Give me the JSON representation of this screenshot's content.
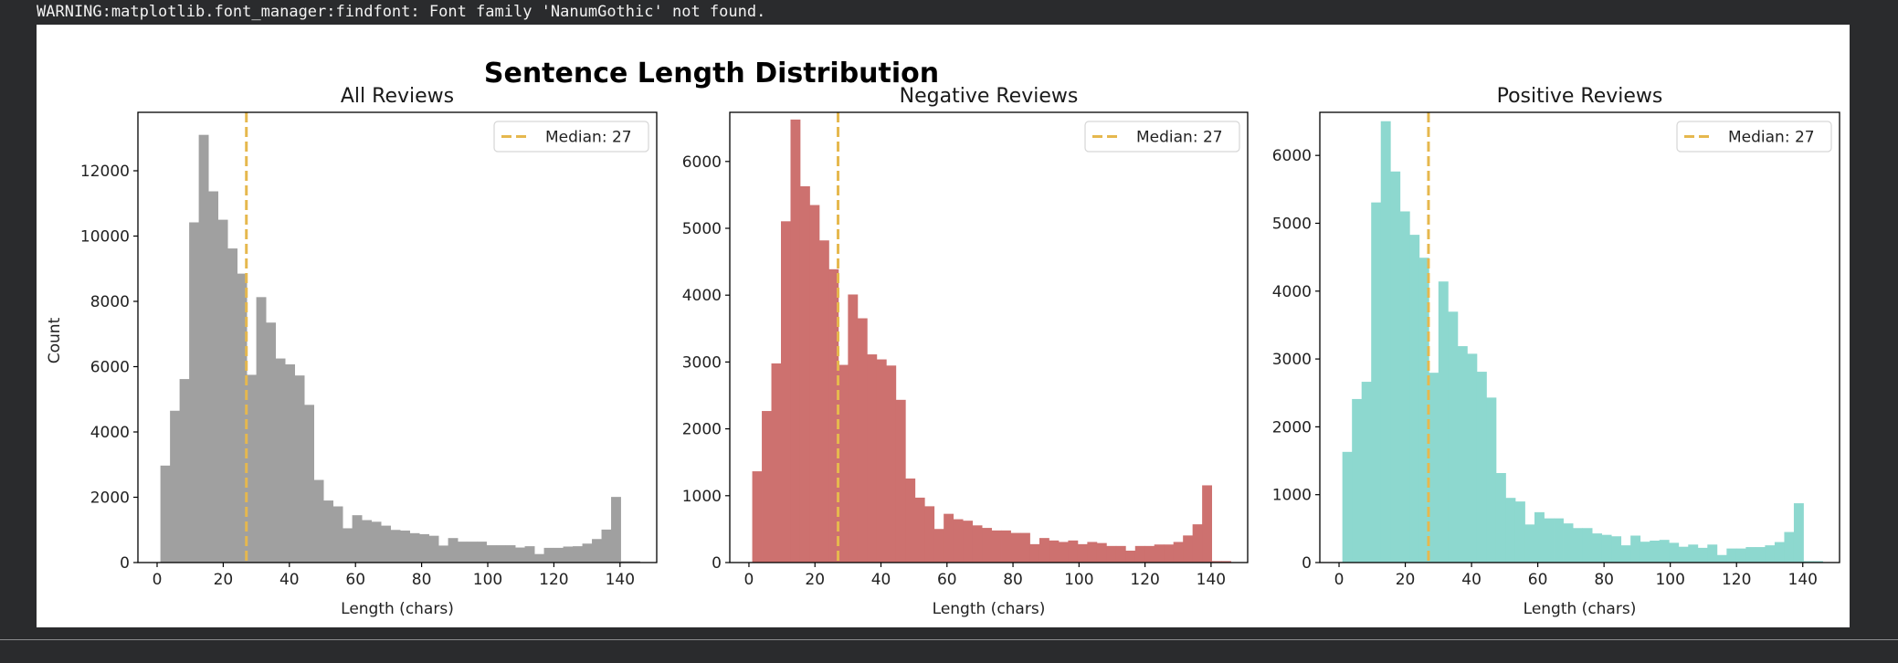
{
  "console": {
    "warning_text": "WARNING:matplotlib.font_manager:findfont: Font family 'NanumGothic' not found."
  },
  "figure": {
    "suptitle": "Sentence Length Distribution",
    "ylabel": "Count",
    "xlabel": "Length (chars)",
    "median_color": "#e6b84e",
    "legend_label": "Median: 27"
  },
  "chart_data": [
    {
      "type": "bar",
      "subtype": "histogram",
      "title": "All Reviews",
      "xlabel": "Length (chars)",
      "ylabel": "Count",
      "color": "#a0a0a0",
      "bin_start": 1,
      "bin_width": 2.9,
      "xlim": [
        -5.8,
        151.1
      ],
      "ylim": [
        0,
        13790
      ],
      "xticks": [
        0,
        20,
        40,
        60,
        80,
        100,
        120,
        140
      ],
      "yticks": [
        0,
        2000,
        4000,
        6000,
        8000,
        10000,
        12000
      ],
      "median": 27,
      "legend": [
        "Median: 27"
      ],
      "legend_position": "upper right",
      "grid": false,
      "values": [
        2970,
        4650,
        5620,
        10420,
        13100,
        11370,
        10500,
        9620,
        8850,
        5750,
        8130,
        7350,
        6250,
        6070,
        5730,
        4830,
        2530,
        1900,
        1720,
        1050,
        1450,
        1300,
        1250,
        1130,
        1000,
        980,
        900,
        870,
        820,
        520,
        750,
        640,
        640,
        640,
        530,
        530,
        530,
        460,
        500,
        260,
        450,
        450,
        490,
        500,
        580,
        720,
        1010,
        2010,
        40,
        40
      ]
    },
    {
      "type": "bar",
      "subtype": "histogram",
      "title": "Negative Reviews",
      "xlabel": "Length (chars)",
      "ylabel": "",
      "color": "#cd716f",
      "bin_start": 1,
      "bin_width": 2.9,
      "xlim": [
        -5.8,
        151.1
      ],
      "ylim": [
        0,
        6735
      ],
      "xticks": [
        0,
        20,
        40,
        60,
        80,
        100,
        120,
        140
      ],
      "yticks": [
        0,
        1000,
        2000,
        3000,
        4000,
        5000,
        6000
      ],
      "median": 27,
      "legend": [
        "Median: 27"
      ],
      "legend_position": "upper right",
      "grid": false,
      "values": [
        1365,
        2267,
        2979,
        5105,
        6627,
        5629,
        5348,
        4819,
        4388,
        2957,
        4010,
        3654,
        3114,
        3039,
        2947,
        2434,
        1257,
        971,
        842,
        502,
        729,
        648,
        626,
        556,
        518,
        480,
        480,
        443,
        443,
        275,
        367,
        330,
        308,
        330,
        275,
        308,
        292,
        248,
        248,
        178,
        248,
        248,
        270,
        270,
        308,
        405,
        572,
        1155,
        22,
        22
      ]
    },
    {
      "type": "bar",
      "subtype": "histogram",
      "title": "Positive Reviews",
      "xlabel": "Length (chars)",
      "ylabel": "",
      "color": "#8dd8cf",
      "bin_start": 1,
      "bin_width": 2.9,
      "xlim": [
        -5.8,
        151.1
      ],
      "ylim": [
        0,
        6635
      ],
      "xticks": [
        0,
        20,
        40,
        60,
        80,
        100,
        120,
        140
      ],
      "yticks": [
        0,
        1000,
        2000,
        3000,
        4000,
        5000,
        6000
      ],
      "median": 27,
      "legend": [
        "Median: 27"
      ],
      "legend_position": "upper right",
      "grid": false,
      "values": [
        1631,
        2410,
        2664,
        5307,
        6504,
        5763,
        5175,
        4830,
        4492,
        2797,
        4142,
        3697,
        3189,
        3077,
        2812,
        2431,
        1319,
        953,
        900,
        561,
        742,
        651,
        651,
        577,
        508,
        508,
        429,
        408,
        387,
        254,
        397,
        307,
        323,
        334,
        291,
        233,
        265,
        217,
        265,
        111,
        207,
        207,
        228,
        228,
        254,
        302,
        450,
        874,
        21,
        21
      ]
    }
  ]
}
